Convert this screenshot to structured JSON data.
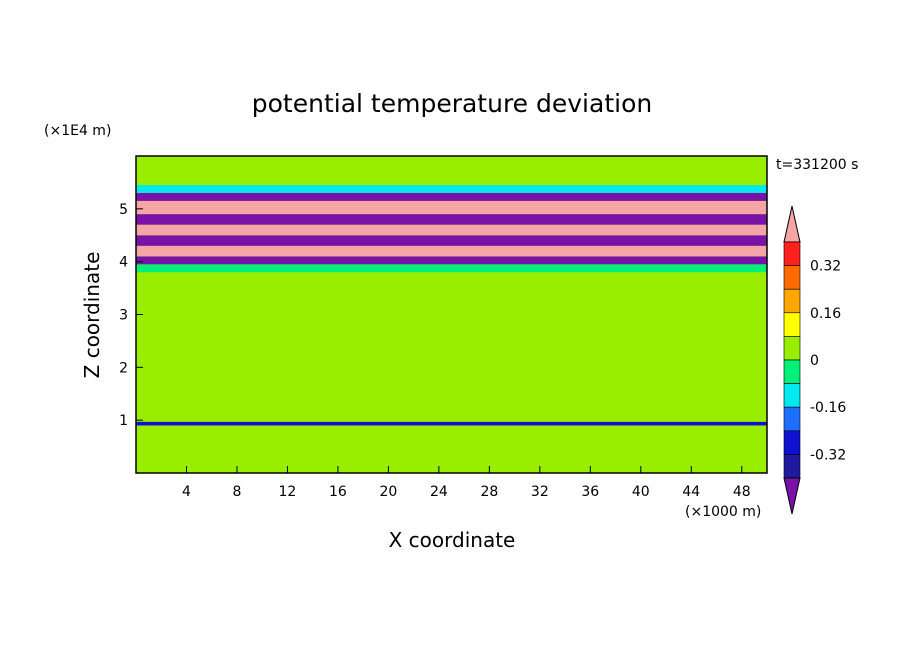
{
  "chart_data": {
    "type": "heatmap",
    "title": "potential temperature deviation",
    "xlabel": "X coordinate",
    "ylabel": "Z coordinate",
    "x_unit_label": "(×1000 m)",
    "y_unit_label": "(×1E4 m)",
    "time_label": "t=331200 s",
    "xlim": [
      0,
      50
    ],
    "ylim": [
      0,
      6
    ],
    "x_ticks": [
      4,
      8,
      12,
      16,
      20,
      24,
      28,
      32,
      36,
      40,
      44,
      48
    ],
    "y_ticks": [
      1,
      2,
      3,
      4,
      5
    ],
    "colorbar": {
      "levels": [
        -0.48,
        -0.4,
        -0.32,
        -0.24,
        -0.16,
        -0.08,
        0,
        0.08,
        0.16,
        0.24,
        0.32,
        0.4,
        0.48
      ],
      "colors": [
        "#7b12a8",
        "#1f1aa0",
        "#1010d0",
        "#1f6fff",
        "#00e8f0",
        "#00f078",
        "#99ee00",
        "#ffff00",
        "#ffa500",
        "#ff6a00",
        "#ff2020",
        "#f5a5a5"
      ],
      "tick_labels": [
        "0.32",
        "0.16",
        "0",
        "-0.16",
        "-0.32"
      ],
      "tick_values": [
        0.32,
        0.16,
        0,
        -0.16,
        -0.32
      ],
      "extend": "both"
    },
    "bands": [
      {
        "z0": 0.0,
        "z1": 0.9,
        "value": 0.02
      },
      {
        "z0": 0.9,
        "z1": 0.97,
        "value": -0.3
      },
      {
        "z0": 0.97,
        "z1": 3.8,
        "value": 0.02
      },
      {
        "z0": 3.8,
        "z1": 3.95,
        "value": -0.05
      },
      {
        "z0": 3.95,
        "z1": 4.1,
        "value": -0.45
      },
      {
        "z0": 4.1,
        "z1": 4.3,
        "value": 0.45
      },
      {
        "z0": 4.3,
        "z1": 4.5,
        "value": -0.45
      },
      {
        "z0": 4.5,
        "z1": 4.7,
        "value": 0.45
      },
      {
        "z0": 4.7,
        "z1": 4.9,
        "value": -0.45
      },
      {
        "z0": 4.9,
        "z1": 5.15,
        "value": 0.45
      },
      {
        "z0": 5.15,
        "z1": 5.3,
        "value": -0.45
      },
      {
        "z0": 5.3,
        "z1": 5.45,
        "value": -0.1
      },
      {
        "z0": 5.45,
        "z1": 6.0,
        "value": 0.02
      }
    ]
  }
}
